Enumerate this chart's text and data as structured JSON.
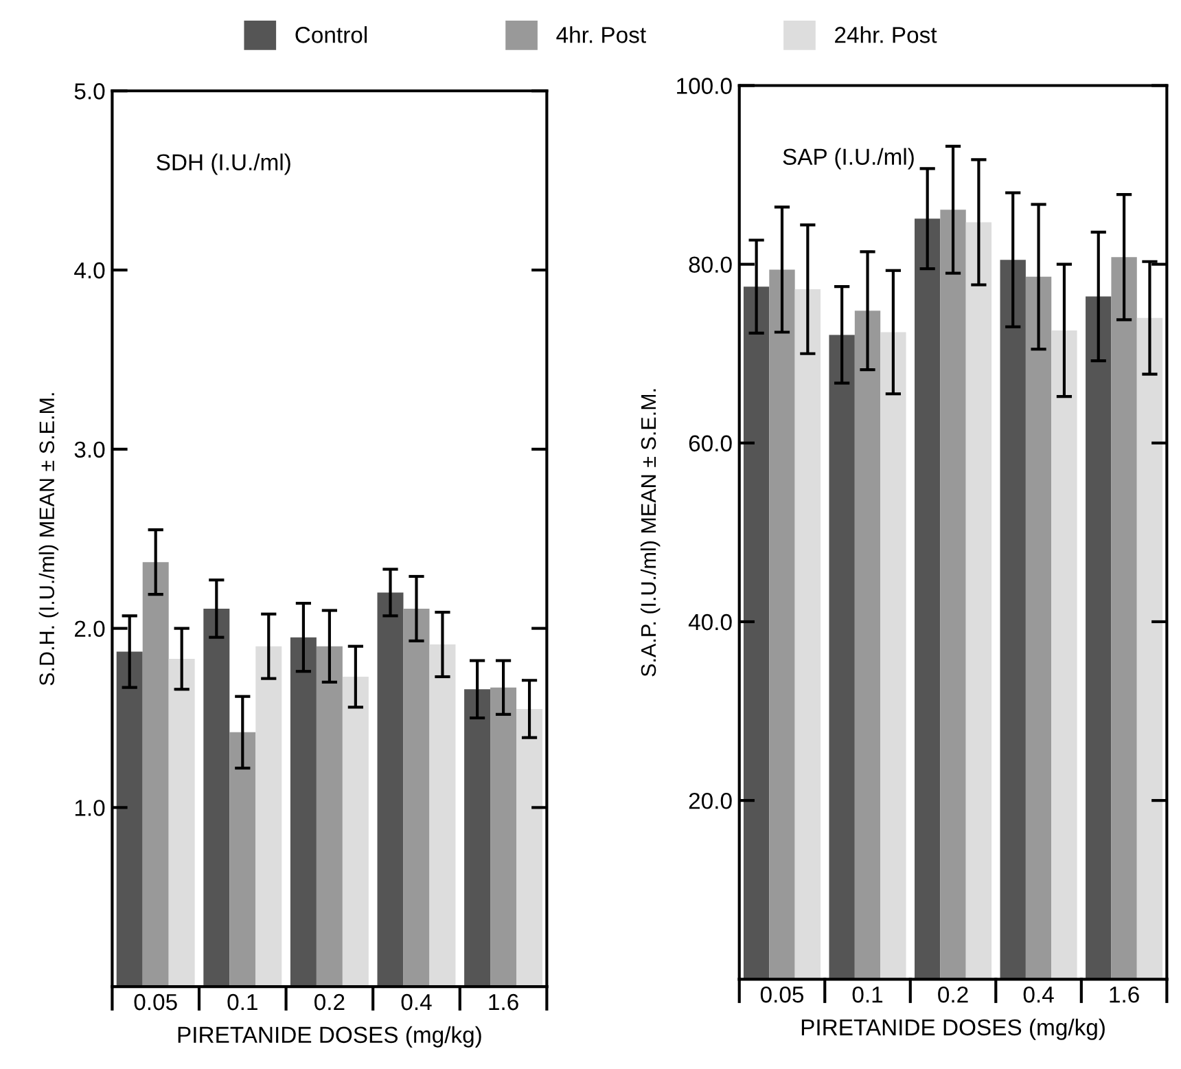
{
  "chart_data": [
    {
      "type": "bar",
      "title": "SDH (I.U./ml)",
      "xlabel": "PIRETANIDE DOSES (mg/kg)",
      "ylabel": "S.D.H. (I.U./ml) MEAN ± S.E.M.",
      "categories": [
        "0.05",
        "0.1",
        "0.2",
        "0.4",
        "1.6"
      ],
      "series": [
        {
          "name": "Control",
          "color": "#555555",
          "values": [
            1.87,
            2.11,
            1.95,
            2.2,
            1.66
          ],
          "errors": [
            0.2,
            0.16,
            0.19,
            0.13,
            0.16
          ]
        },
        {
          "name": "4hr. Post",
          "color": "#999999",
          "values": [
            2.37,
            1.42,
            1.9,
            2.11,
            1.67
          ],
          "errors": [
            0.18,
            0.2,
            0.2,
            0.18,
            0.15
          ]
        },
        {
          "name": "24hr. Post",
          "color": "#dddddd",
          "values": [
            1.83,
            1.9,
            1.73,
            1.91,
            1.55
          ],
          "errors": [
            0.17,
            0.18,
            0.17,
            0.18,
            0.16
          ]
        }
      ],
      "ylim": [
        0,
        5
      ],
      "yticks": [
        {
          "value": 1,
          "label": "1.0"
        },
        {
          "value": 2,
          "label": "2.0"
        },
        {
          "value": 3,
          "label": "3.0"
        },
        {
          "value": 4,
          "label": "4.0"
        },
        {
          "value": 5,
          "label": "5.0"
        }
      ],
      "legend": "top",
      "grid": false
    },
    {
      "type": "bar",
      "title": "SAP (I.U./ml)",
      "xlabel": "PIRETANIDE DOSES (mg/kg)",
      "ylabel": "S.A.P. (I.U./ml) MEAN ± S.E.M.",
      "categories": [
        "0.05",
        "0.1",
        "0.2",
        "0.4",
        "1.6"
      ],
      "series": [
        {
          "color": "#555555",
          "values": [
            77.5,
            72.1,
            85.1,
            80.5,
            76.4
          ],
          "errors": [
            5.2,
            5.4,
            5.6,
            7.5,
            7.2
          ]
        },
        {
          "color": "#999999",
          "values": [
            79.4,
            74.8,
            86.1,
            78.6,
            80.8
          ],
          "errors": [
            7.0,
            6.6,
            7.1,
            8.1,
            7.0
          ]
        },
        {
          "color": "#dddddd",
          "values": [
            77.2,
            72.4,
            84.7,
            72.6,
            74.0
          ],
          "errors": [
            7.2,
            6.9,
            7.0,
            7.4,
            6.3
          ]
        }
      ],
      "ylim": [
        0,
        100
      ],
      "yticks": [
        {
          "value": 20,
          "label": "20.0"
        },
        {
          "value": 40,
          "label": "40.0"
        },
        {
          "value": 60,
          "label": "60.0"
        },
        {
          "value": 80,
          "label": "80.0"
        },
        {
          "value": 100,
          "label": "100.0"
        }
      ],
      "grid": false
    }
  ]
}
